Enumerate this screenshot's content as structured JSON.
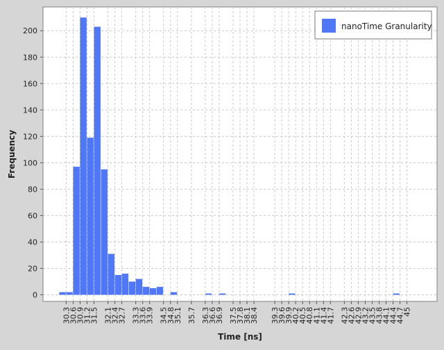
{
  "chart_data": {
    "type": "bar",
    "title": "",
    "xlabel": "Time [ns]",
    "ylabel": "Frequency",
    "ylim": [
      -5,
      218
    ],
    "grid": true,
    "legend_position": "top-right",
    "series": [
      {
        "name": "nanoTime Granularity",
        "color": "#5078f6"
      }
    ],
    "y_ticks": [
      0,
      20,
      40,
      60,
      80,
      100,
      120,
      140,
      160,
      180,
      200
    ],
    "x_tick_labels": [
      "30.3",
      "30.6",
      "30.9",
      "31.2",
      "31.5",
      "32.1",
      "32.4",
      "32.7",
      "33.3",
      "33.6",
      "33.9",
      "34.5",
      "34.8",
      "35.1",
      "35.7",
      "36.3",
      "36.6",
      "36.9",
      "37.5",
      "37.8",
      "38.1",
      "38.4",
      "39.3",
      "39.6",
      "39.9",
      "40.2",
      "40.5",
      "40.8",
      "41.1",
      "41.4",
      "41.7",
      "42.3",
      "42.6",
      "42.9",
      "43.2",
      "43.5",
      "43.8",
      "44.1",
      "44.4",
      "44.7",
      "45"
    ],
    "bin_width": 0.3,
    "bins": [
      {
        "x": 30.0,
        "y": 2
      },
      {
        "x": 30.3,
        "y": 2
      },
      {
        "x": 30.6,
        "y": 97
      },
      {
        "x": 30.9,
        "y": 210
      },
      {
        "x": 31.2,
        "y": 119
      },
      {
        "x": 31.5,
        "y": 203
      },
      {
        "x": 31.8,
        "y": 95
      },
      {
        "x": 32.1,
        "y": 31
      },
      {
        "x": 32.4,
        "y": 15
      },
      {
        "x": 32.7,
        "y": 16
      },
      {
        "x": 33.0,
        "y": 10
      },
      {
        "x": 33.3,
        "y": 12
      },
      {
        "x": 33.6,
        "y": 6
      },
      {
        "x": 33.9,
        "y": 5
      },
      {
        "x": 34.2,
        "y": 6
      },
      {
        "x": 34.8,
        "y": 2
      },
      {
        "x": 36.3,
        "y": 1
      },
      {
        "x": 36.9,
        "y": 1
      },
      {
        "x": 39.9,
        "y": 1
      },
      {
        "x": 44.4,
        "y": 1
      }
    ]
  }
}
